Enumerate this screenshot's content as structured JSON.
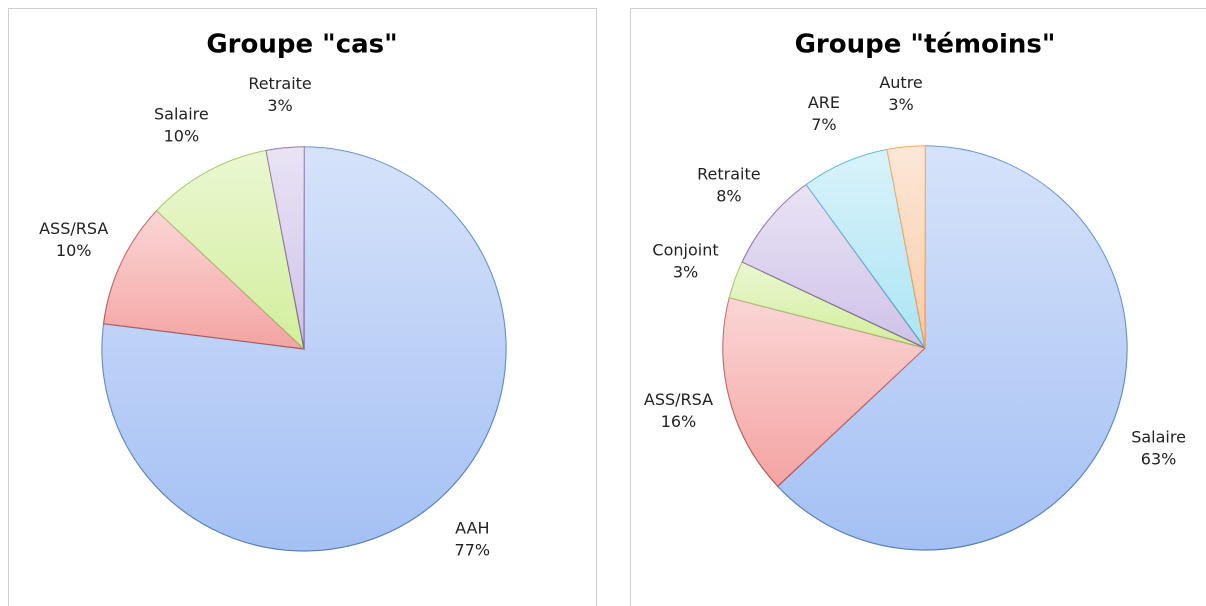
{
  "chart_data": [
    {
      "type": "pie",
      "title": "Groupe \"cas\"",
      "categories": [
        "AAH",
        "ASS/RSA",
        "Salaire",
        "Retraite"
      ],
      "values": [
        77,
        10,
        10,
        3
      ],
      "value_labels": [
        "77%",
        "10%",
        "10%",
        "3%"
      ],
      "colors": [
        "#a4c0f4",
        "#f4a4a2",
        "#d2ee9c",
        "#cfc2e8"
      ],
      "edge_colors": [
        "#4f81bd",
        "#c0504d",
        "#9bbb59",
        "#8064a2"
      ]
    },
    {
      "type": "pie",
      "title": "Groupe \"témoins\"",
      "categories": [
        "Salaire",
        "ASS/RSA",
        "Conjoint",
        "Retraite",
        "ARE",
        "Autre"
      ],
      "values": [
        63,
        16,
        3,
        8,
        7,
        3
      ],
      "value_labels": [
        "63%",
        "16%",
        "3%",
        "8%",
        "7%",
        "3%"
      ],
      "colors": [
        "#a4c0f4",
        "#f4a4a2",
        "#d2ee9c",
        "#cfc2e8",
        "#ace4f4",
        "#f9cba8"
      ],
      "edge_colors": [
        "#4f81bd",
        "#c0504d",
        "#9bbb59",
        "#8064a2",
        "#4bacc6",
        "#f79646"
      ]
    }
  ]
}
